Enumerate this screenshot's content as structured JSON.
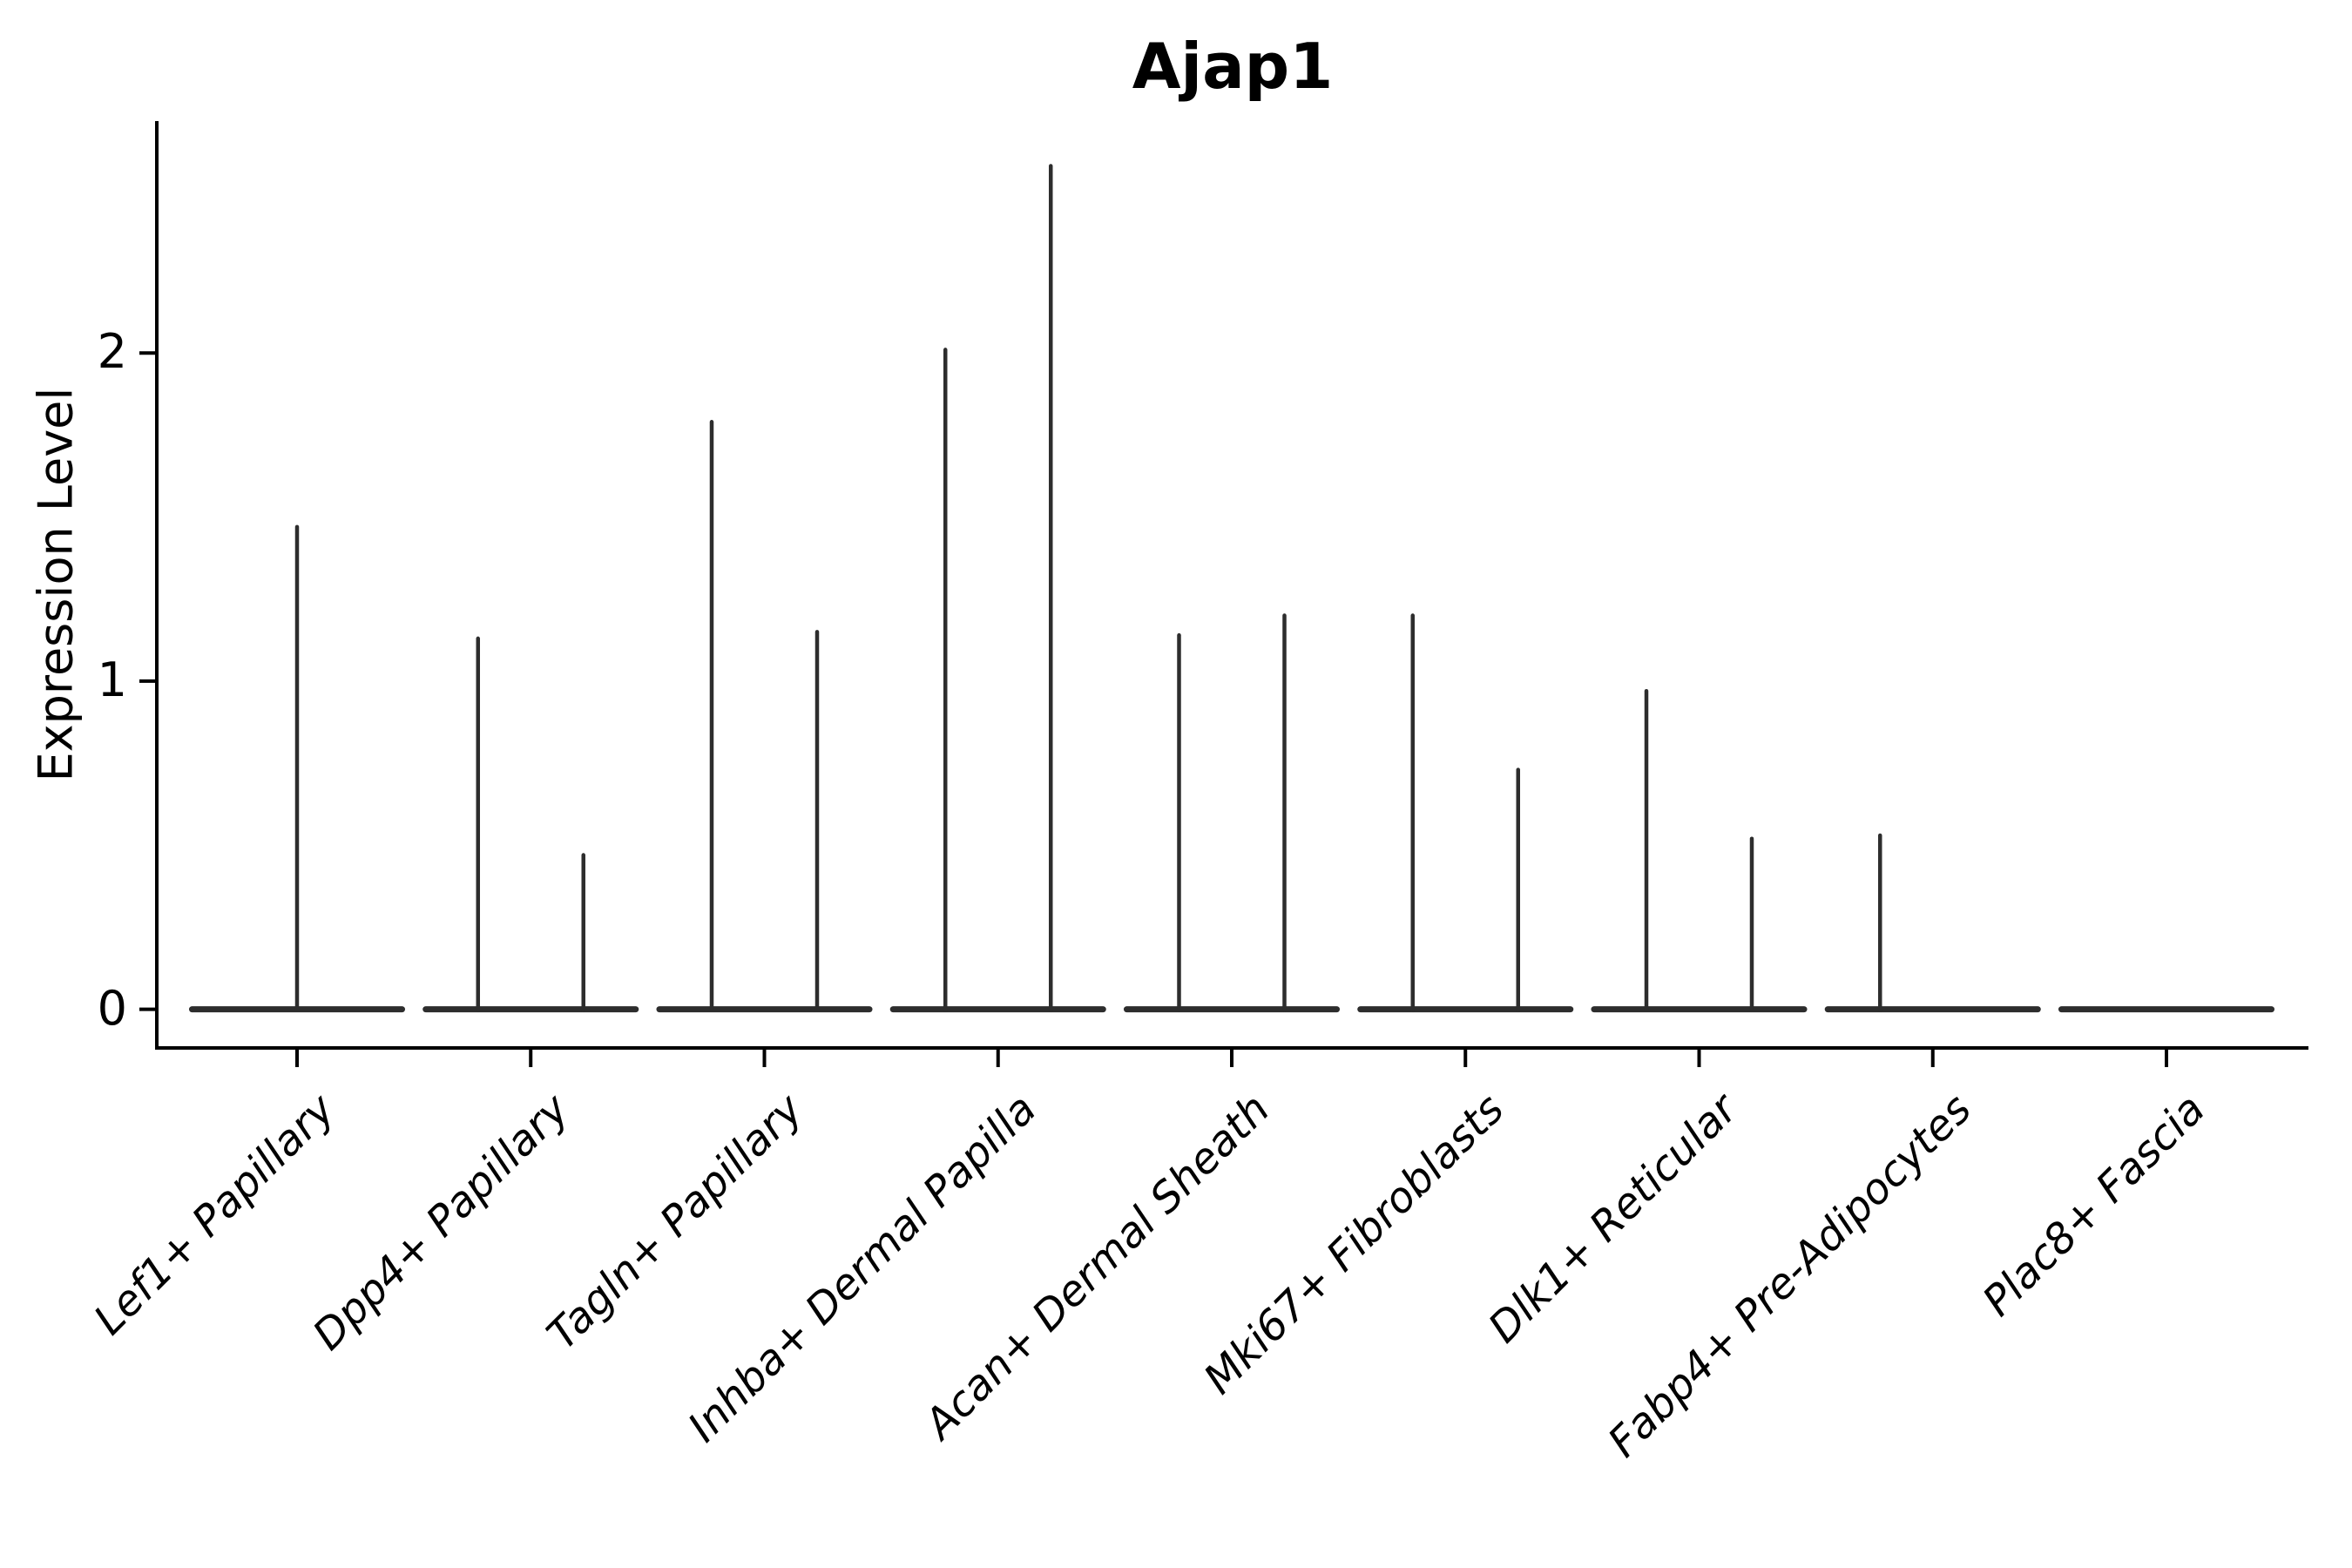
{
  "chart_data": {
    "type": "violin",
    "title": "Ajap1",
    "xlabel": "",
    "ylabel": "Expression Level",
    "ylim": [
      -0.12,
      2.71
    ],
    "grid": false,
    "legend_position": "none",
    "yticks": [
      {
        "value": 0,
        "label": "0"
      },
      {
        "value": 1,
        "label": "1"
      },
      {
        "value": 2,
        "label": "2"
      }
    ],
    "categories": [
      "Lef1+ Papillary",
      "Dpp4+ Papillary",
      "Tagln+ Papillary",
      "Inhba+ Dermal Papilla",
      "Acan+ Dermal Sheath",
      "Mki67+ Fibroblasts",
      "Dlk1+ Reticular",
      "Fabp4+ Pre-Adipocytes",
      "Plac8+ Fascia"
    ],
    "violins": [
      {
        "category": "Lef1+ Papillary",
        "baseline_value": 0,
        "spikes": [
          {
            "pos": "center",
            "value": 1.47
          }
        ]
      },
      {
        "category": "Dpp4+ Papillary",
        "baseline_value": 0,
        "spikes": [
          {
            "pos": "left",
            "value": 1.13
          },
          {
            "pos": "right",
            "value": 0.47
          }
        ]
      },
      {
        "category": "Tagln+ Papillary",
        "baseline_value": 0,
        "spikes": [
          {
            "pos": "left",
            "value": 1.79
          },
          {
            "pos": "right",
            "value": 1.15
          }
        ]
      },
      {
        "category": "Inhba+ Dermal Papilla",
        "baseline_value": 0,
        "spikes": [
          {
            "pos": "left",
            "value": 2.01
          },
          {
            "pos": "right",
            "value": 2.57
          }
        ]
      },
      {
        "category": "Acan+ Dermal Sheath",
        "baseline_value": 0,
        "spikes": [
          {
            "pos": "left",
            "value": 1.14
          },
          {
            "pos": "right",
            "value": 1.2
          }
        ]
      },
      {
        "category": "Mki67+ Fibroblasts",
        "baseline_value": 0,
        "spikes": [
          {
            "pos": "left",
            "value": 1.2
          },
          {
            "pos": "right",
            "value": 0.73
          }
        ]
      },
      {
        "category": "Dlk1+ Reticular",
        "baseline_value": 0,
        "spikes": [
          {
            "pos": "left",
            "value": 0.97
          },
          {
            "pos": "right",
            "value": 0.52
          }
        ]
      },
      {
        "category": "Fabp4+ Pre-Adipocytes",
        "baseline_value": 0,
        "spikes": [
          {
            "pos": "left",
            "value": 0.53
          }
        ]
      },
      {
        "category": "Plac8+ Fascia",
        "baseline_value": 0,
        "spikes": []
      }
    ],
    "colors": {
      "background": "#ffffff",
      "axis": "#000000",
      "text": "#000000",
      "violin_line": "#2d2d2d"
    }
  }
}
